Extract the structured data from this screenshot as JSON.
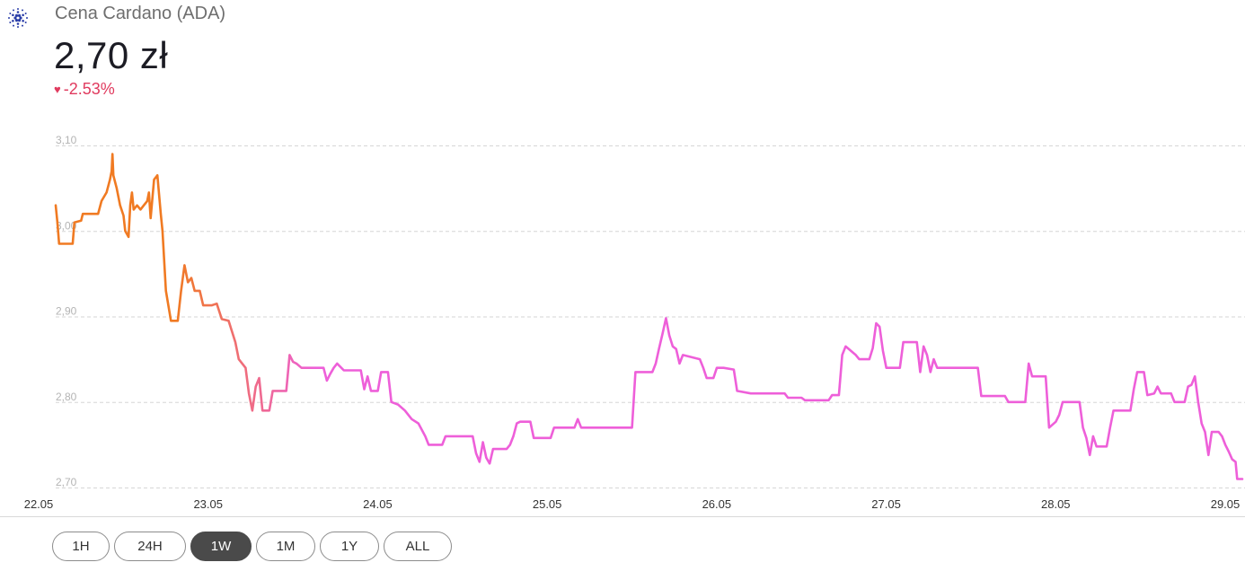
{
  "header": {
    "icon": "cardano-icon",
    "title": "Cena Cardano (ADA)",
    "price": "2,70 zł",
    "change": "-2.53%",
    "change_icon": "heart-icon",
    "change_color": "#e03a5e"
  },
  "range_buttons": [
    {
      "label": "1H",
      "active": false
    },
    {
      "label": "24H",
      "active": false
    },
    {
      "label": "1W",
      "active": true
    },
    {
      "label": "1M",
      "active": false
    },
    {
      "label": "1Y",
      "active": false
    },
    {
      "label": "ALL",
      "active": false
    }
  ],
  "chart_data": {
    "type": "line",
    "title": "",
    "xlabel": "",
    "ylabel": "",
    "x_ticks": [
      "22.05",
      "23.05",
      "24.05",
      "25.05",
      "26.05",
      "27.05",
      "28.05",
      "29.05"
    ],
    "y_ticks": [
      "3,10",
      "3,00",
      "2,90",
      "2,80",
      "2,70"
    ],
    "xlim": [
      0,
      7
    ],
    "ylim": [
      2.7,
      3.1
    ],
    "grid": true,
    "colors": {
      "start": "#f07a22",
      "end": "#ee5fd9"
    },
    "series": [
      {
        "points": [
          [
            0.0,
            3.03
          ],
          [
            0.01,
            3.01
          ],
          [
            0.02,
            2.985
          ],
          [
            0.1,
            2.985
          ],
          [
            0.11,
            3.01
          ],
          [
            0.15,
            3.012
          ],
          [
            0.16,
            3.02
          ],
          [
            0.25,
            3.02
          ],
          [
            0.27,
            3.035
          ],
          [
            0.3,
            3.045
          ],
          [
            0.32,
            3.06
          ],
          [
            0.33,
            3.07
          ],
          [
            0.335,
            3.09
          ],
          [
            0.34,
            3.065
          ],
          [
            0.36,
            3.05
          ],
          [
            0.38,
            3.03
          ],
          [
            0.4,
            3.018
          ],
          [
            0.41,
            3.0
          ],
          [
            0.43,
            2.993
          ],
          [
            0.44,
            3.03
          ],
          [
            0.45,
            3.045
          ],
          [
            0.46,
            3.025
          ],
          [
            0.48,
            3.03
          ],
          [
            0.5,
            3.025
          ],
          [
            0.52,
            3.03
          ],
          [
            0.54,
            3.035
          ],
          [
            0.55,
            3.045
          ],
          [
            0.56,
            3.015
          ],
          [
            0.58,
            3.06
          ],
          [
            0.6,
            3.065
          ],
          [
            0.62,
            3.02
          ],
          [
            0.63,
            3.0
          ],
          [
            0.65,
            2.93
          ],
          [
            0.68,
            2.895
          ],
          [
            0.72,
            2.895
          ],
          [
            0.74,
            2.93
          ],
          [
            0.76,
            2.96
          ],
          [
            0.78,
            2.94
          ],
          [
            0.8,
            2.945
          ],
          [
            0.82,
            2.93
          ],
          [
            0.85,
            2.93
          ],
          [
            0.87,
            2.913
          ],
          [
            0.92,
            2.913
          ],
          [
            0.95,
            2.915
          ],
          [
            0.98,
            2.897
          ],
          [
            1.02,
            2.895
          ],
          [
            1.06,
            2.87
          ],
          [
            1.08,
            2.85
          ],
          [
            1.12,
            2.84
          ],
          [
            1.14,
            2.81
          ],
          [
            1.16,
            2.79
          ],
          [
            1.18,
            2.818
          ],
          [
            1.2,
            2.828
          ],
          [
            1.22,
            2.79
          ],
          [
            1.26,
            2.79
          ],
          [
            1.28,
            2.813
          ],
          [
            1.36,
            2.813
          ],
          [
            1.38,
            2.855
          ],
          [
            1.4,
            2.847
          ],
          [
            1.42,
            2.845
          ],
          [
            1.45,
            2.84
          ],
          [
            1.58,
            2.84
          ],
          [
            1.6,
            2.825
          ],
          [
            1.62,
            2.833
          ],
          [
            1.64,
            2.84
          ],
          [
            1.66,
            2.845
          ],
          [
            1.7,
            2.837
          ],
          [
            1.8,
            2.837
          ],
          [
            1.82,
            2.815
          ],
          [
            1.84,
            2.83
          ],
          [
            1.86,
            2.813
          ],
          [
            1.9,
            2.813
          ],
          [
            1.92,
            2.835
          ],
          [
            1.96,
            2.835
          ],
          [
            1.98,
            2.8
          ],
          [
            2.02,
            2.797
          ],
          [
            2.06,
            2.79
          ],
          [
            2.1,
            2.78
          ],
          [
            2.14,
            2.775
          ],
          [
            2.18,
            2.76
          ],
          [
            2.2,
            2.75
          ],
          [
            2.28,
            2.75
          ],
          [
            2.3,
            2.76
          ],
          [
            2.46,
            2.76
          ],
          [
            2.48,
            2.74
          ],
          [
            2.5,
            2.73
          ],
          [
            2.52,
            2.753
          ],
          [
            2.54,
            2.735
          ],
          [
            2.56,
            2.728
          ],
          [
            2.58,
            2.745
          ],
          [
            2.66,
            2.745
          ],
          [
            2.68,
            2.75
          ],
          [
            2.7,
            2.76
          ],
          [
            2.72,
            2.775
          ],
          [
            2.74,
            2.777
          ],
          [
            2.8,
            2.777
          ],
          [
            2.82,
            2.758
          ],
          [
            2.92,
            2.758
          ],
          [
            2.94,
            2.77
          ],
          [
            3.06,
            2.77
          ],
          [
            3.08,
            2.78
          ],
          [
            3.1,
            2.77
          ],
          [
            3.4,
            2.77
          ],
          [
            3.42,
            2.835
          ],
          [
            3.52,
            2.835
          ],
          [
            3.54,
            2.845
          ],
          [
            3.56,
            2.863
          ],
          [
            3.58,
            2.88
          ],
          [
            3.6,
            2.898
          ],
          [
            3.62,
            2.878
          ],
          [
            3.64,
            2.865
          ],
          [
            3.66,
            2.862
          ],
          [
            3.68,
            2.845
          ],
          [
            3.7,
            2.855
          ],
          [
            3.8,
            2.85
          ],
          [
            3.82,
            2.84
          ],
          [
            3.84,
            2.828
          ],
          [
            3.88,
            2.828
          ],
          [
            3.9,
            2.84
          ],
          [
            3.94,
            2.84
          ],
          [
            4.0,
            2.838
          ],
          [
            4.02,
            2.813
          ],
          [
            4.1,
            2.81
          ],
          [
            4.3,
            2.81
          ],
          [
            4.32,
            2.805
          ],
          [
            4.4,
            2.805
          ],
          [
            4.42,
            2.802
          ],
          [
            4.56,
            2.802
          ],
          [
            4.58,
            2.808
          ],
          [
            4.62,
            2.808
          ],
          [
            4.64,
            2.855
          ],
          [
            4.66,
            2.865
          ],
          [
            4.72,
            2.855
          ],
          [
            4.74,
            2.85
          ],
          [
            4.8,
            2.85
          ],
          [
            4.82,
            2.863
          ],
          [
            4.84,
            2.892
          ],
          [
            4.86,
            2.888
          ],
          [
            4.88,
            2.86
          ],
          [
            4.9,
            2.84
          ],
          [
            4.98,
            2.84
          ],
          [
            5.0,
            2.87
          ],
          [
            5.08,
            2.87
          ],
          [
            5.1,
            2.835
          ],
          [
            5.12,
            2.865
          ],
          [
            5.14,
            2.855
          ],
          [
            5.16,
            2.835
          ],
          [
            5.18,
            2.85
          ],
          [
            5.2,
            2.84
          ],
          [
            5.44,
            2.84
          ],
          [
            5.46,
            2.807
          ],
          [
            5.6,
            2.807
          ],
          [
            5.62,
            2.8
          ],
          [
            5.72,
            2.8
          ],
          [
            5.74,
            2.845
          ],
          [
            5.76,
            2.83
          ],
          [
            5.84,
            2.83
          ],
          [
            5.86,
            2.77
          ],
          [
            5.9,
            2.777
          ],
          [
            5.92,
            2.785
          ],
          [
            5.94,
            2.8
          ],
          [
            6.04,
            2.8
          ],
          [
            6.06,
            2.77
          ],
          [
            6.08,
            2.758
          ],
          [
            6.1,
            2.738
          ],
          [
            6.12,
            2.76
          ],
          [
            6.14,
            2.748
          ],
          [
            6.2,
            2.748
          ],
          [
            6.22,
            2.77
          ],
          [
            6.24,
            2.79
          ],
          [
            6.34,
            2.79
          ],
          [
            6.36,
            2.815
          ],
          [
            6.38,
            2.835
          ],
          [
            6.42,
            2.835
          ],
          [
            6.44,
            2.808
          ],
          [
            6.48,
            2.81
          ],
          [
            6.5,
            2.818
          ],
          [
            6.52,
            2.81
          ],
          [
            6.58,
            2.81
          ],
          [
            6.6,
            2.8
          ],
          [
            6.66,
            2.8
          ],
          [
            6.68,
            2.818
          ],
          [
            6.7,
            2.82
          ],
          [
            6.72,
            2.83
          ],
          [
            6.74,
            2.8
          ],
          [
            6.76,
            2.775
          ],
          [
            6.78,
            2.765
          ],
          [
            6.8,
            2.738
          ],
          [
            6.82,
            2.765
          ],
          [
            6.86,
            2.765
          ],
          [
            6.88,
            2.76
          ],
          [
            6.9,
            2.75
          ],
          [
            6.92,
            2.742
          ],
          [
            6.94,
            2.733
          ],
          [
            6.96,
            2.73
          ],
          [
            6.97,
            2.71
          ],
          [
            7.0,
            2.71
          ]
        ]
      }
    ]
  }
}
